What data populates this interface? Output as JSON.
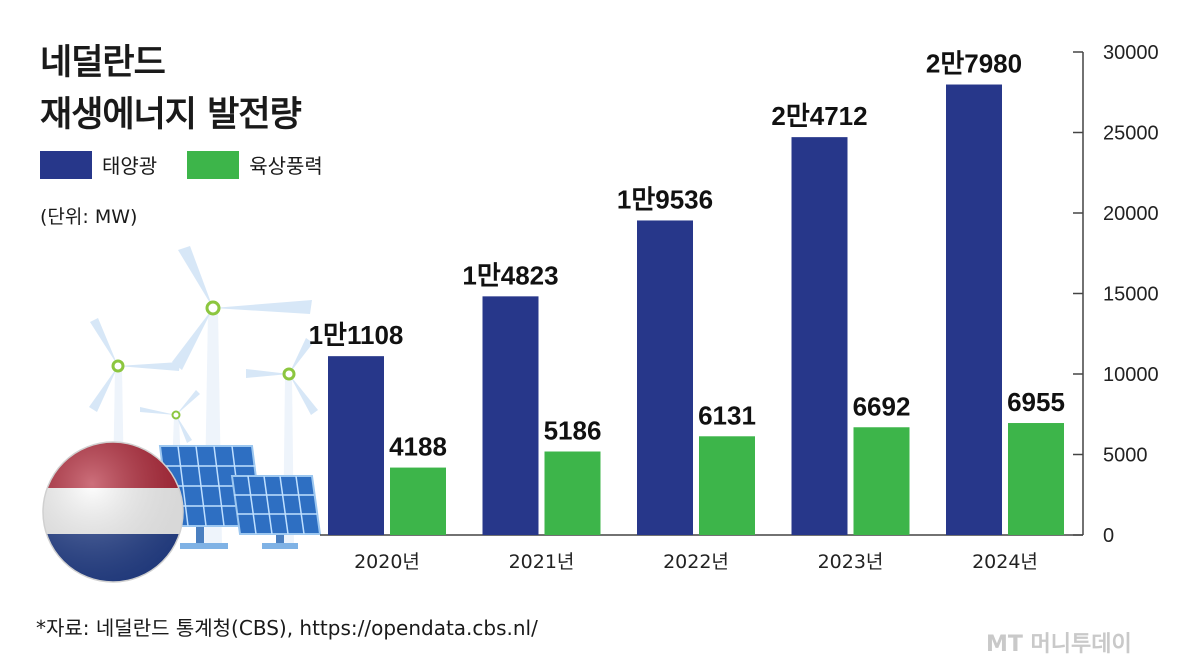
{
  "header": {
    "title_line1": "네덜란드",
    "title_line2": "재생에너지 발전량"
  },
  "legend": {
    "solar": "태양광",
    "wind": "육상풍력"
  },
  "unit_label": "(단위: MW)",
  "source": "*자료: 네덜란드 통계청(CBS), https://opendata.cbs.nl/",
  "credit": "MT 머니투데이",
  "colors": {
    "solar": "#27378a",
    "wind": "#3db54a"
  },
  "chart_data": {
    "type": "bar",
    "title": "네덜란드 재생에너지 발전량",
    "categories": [
      "2020년",
      "2021년",
      "2022년",
      "2023년",
      "2024년"
    ],
    "series": [
      {
        "name": "태양광",
        "values": [
          11108,
          14823,
          19536,
          24712,
          27980
        ],
        "labels": [
          "1만1108",
          "1만4823",
          "1만9536",
          "2만4712",
          "2만7980"
        ]
      },
      {
        "name": "육상풍력",
        "values": [
          4188,
          5186,
          6131,
          6692,
          6955
        ],
        "labels": [
          "4188",
          "5186",
          "6131",
          "6692",
          "6955"
        ]
      }
    ],
    "yaxis_position": "right",
    "yticks": [
      0,
      5000,
      10000,
      15000,
      20000,
      25000,
      30000
    ],
    "ylim": [
      0,
      30000
    ],
    "unit": "MW"
  }
}
